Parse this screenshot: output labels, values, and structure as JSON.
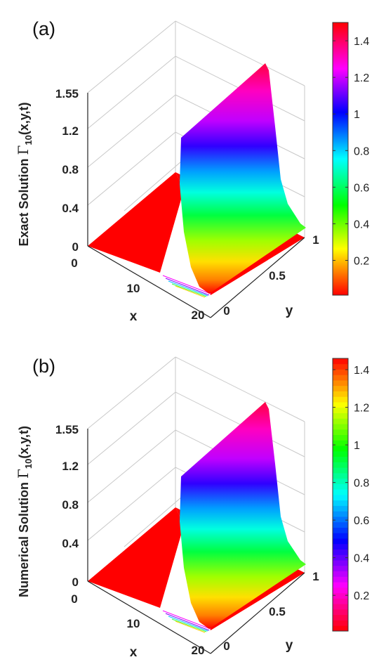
{
  "chart_data": [
    {
      "type": "surface",
      "panel_label": "(a)",
      "zlabel": "Exact Solution Γ10(x,y,t)",
      "zlabel_main": "Exact Solution ",
      "zlabel_symbol": "Γ",
      "zlabel_sub": "10",
      "zlabel_args": "(x,y,t)",
      "xlabel": "x",
      "ylabel": "y",
      "x_ticks": [
        "0",
        "10",
        "20"
      ],
      "y_ticks": [
        "0",
        "0.5",
        "1"
      ],
      "z_ticks": [
        "0",
        "0.4",
        "0.8",
        "1.2",
        "1.55"
      ],
      "xlim": [
        0,
        20
      ],
      "ylim": [
        0,
        1
      ],
      "zlim": [
        0,
        1.55
      ],
      "profile": {
        "x": [
          0,
          10,
          12,
          13,
          14,
          14.5,
          15,
          16,
          17,
          20
        ],
        "z": [
          0,
          0.02,
          0.12,
          0.45,
          1.05,
          1.2,
          1.05,
          0.45,
          0.1,
          0.01
        ]
      },
      "ridge_x": 14.5,
      "ridge_peak": 1.2,
      "colorbar": {
        "ticks": [
          "0.2",
          "0.4",
          "0.6",
          "0.8",
          "1",
          "1.2",
          "1.4"
        ],
        "tick_values": [
          0.2,
          0.4,
          0.6,
          0.8,
          1.0,
          1.2,
          1.4
        ],
        "range": [
          0.01,
          1.5
        ],
        "colormap": "hsv",
        "banded": false
      }
    },
    {
      "type": "surface",
      "panel_label": "(b)",
      "zlabel": "Numerical Solution Γ10(x,y,t)",
      "zlabel_main": "Numerical Solution ",
      "zlabel_symbol": "Γ",
      "zlabel_sub": "10",
      "zlabel_args": "(x,y,t)",
      "xlabel": "x",
      "ylabel": "y",
      "x_ticks": [
        "0",
        "10",
        "20"
      ],
      "y_ticks": [
        "0",
        "0.5",
        "1"
      ],
      "z_ticks": [
        "0",
        "0.4",
        "0.8",
        "1.2",
        "1.55"
      ],
      "xlim": [
        0,
        20
      ],
      "ylim": [
        0,
        1
      ],
      "zlim": [
        0,
        1.55
      ],
      "profile": {
        "x": [
          0,
          10,
          12,
          13,
          14,
          14.5,
          15,
          16,
          17,
          20
        ],
        "z": [
          0,
          0.02,
          0.12,
          0.45,
          1.05,
          1.2,
          1.05,
          0.45,
          0.1,
          0.01
        ]
      },
      "ridge_x": 14.5,
      "ridge_peak": 1.2,
      "colorbar": {
        "ticks": [
          "0.2",
          "0.4",
          "0.6",
          "0.8",
          "1",
          "1.2",
          "1.4"
        ],
        "tick_values": [
          0.2,
          0.4,
          0.6,
          0.8,
          1.0,
          1.2,
          1.4
        ],
        "range": [
          0.01,
          1.46
        ],
        "colormap": "hsv",
        "banded": true
      }
    }
  ]
}
